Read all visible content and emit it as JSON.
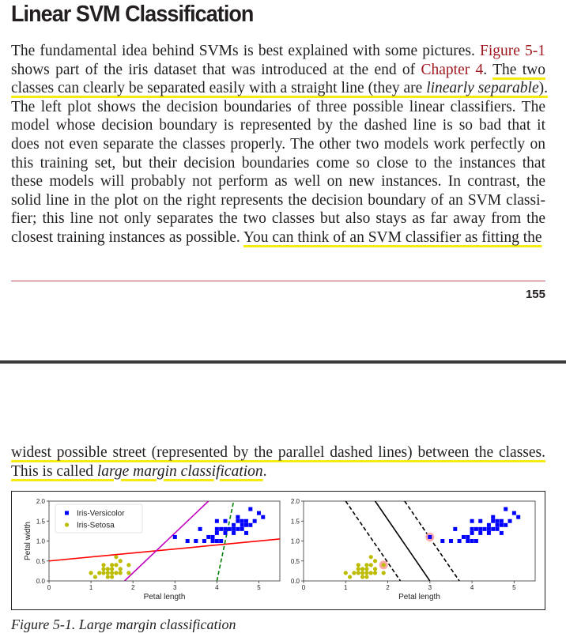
{
  "heading": "Linear SVM Classification",
  "para1": [
    [
      "The fundamental idea behind SVMs is best explained with some pictures. ",
      {
        "t": "Figure 5-1",
        "ref": true
      }
    ],
    [
      "shows part of the iris dataset that was introduced at the end of ",
      {
        "t": "Chapter 4",
        "ref": true
      },
      ". ",
      {
        "t": "The two",
        "hl": true
      }
    ],
    [
      {
        "t": "classes can clearly be separated easily with a straight line (they are ",
        "hl": true
      },
      {
        "t": "linearly separable",
        "hl": true,
        "i": true
      },
      {
        "t": ").",
        "hl": true
      }
    ],
    [
      "The left plot shows the decision boundaries of three possible linear classifiers. The"
    ],
    [
      "model whose decision boundary is represented by the dashed line is so bad that it"
    ],
    [
      "does not even separate the classes properly. The other two models work perfectly on"
    ],
    [
      "this training set, but their decision boundaries come so close to the instances that"
    ],
    [
      "these models will probably not perform as well on new instances. In contrast, the"
    ],
    [
      "solid line in the plot on the right represents the decision boundary of an SVM classi-"
    ],
    [
      "fier; this line not only separates the two classes but also stays as far away from the"
    ],
    [
      "closest training instances as possible. ",
      {
        "t": "You can think of an SVM classifier as fitting the",
        "hl": true
      }
    ]
  ],
  "page_number": "155",
  "para2": [
    [
      {
        "t": "widest possible street (represented by the parallel dashed lines) between the classes.",
        "hl": true
      }
    ],
    [
      {
        "t": "This is called ",
        "hl": true
      },
      {
        "t": "large margin classification",
        "hl": true,
        "i": true
      },
      "."
    ]
  ],
  "caption": "Figure 5-1. Large margin classification",
  "colors": {
    "versicolor": "#0000ff",
    "setosa": "#bcbc00",
    "red_line": "#ff0000",
    "magenta_line": "#bf00bf",
    "green_line": "#008000",
    "support_vector": "#ffaaaa",
    "highlight": "#f6ea10",
    "link": "#a01820"
  },
  "chart_data": [
    {
      "type": "scatter",
      "title": "",
      "xlabel": "Petal length",
      "ylabel": "Petal width",
      "xlim": [
        0,
        5.5
      ],
      "ylim": [
        0,
        2
      ],
      "xticks": [
        "0",
        "1",
        "2",
        "3",
        "4",
        "5"
      ],
      "yticks": [
        "0.0",
        "0.5",
        "1.0",
        "1.5",
        "2.0"
      ],
      "legend": {
        "position": "top-left",
        "entries": [
          {
            "label": "Iris-Versicolor",
            "marker": "square",
            "color": "#0000ff"
          },
          {
            "label": "Iris-Setosa",
            "marker": "circle",
            "color": "#bcbc00"
          }
        ]
      },
      "series": [
        {
          "name": "Iris-Versicolor",
          "marker": "square",
          "color": "#0000ff",
          "points": [
            [
              3.0,
              1.1
            ],
            [
              3.5,
              1.0
            ],
            [
              3.7,
              1.0
            ],
            [
              3.9,
              1.0
            ],
            [
              3.9,
              1.1
            ],
            [
              4.0,
              1.0
            ],
            [
              4.0,
              1.2
            ],
            [
              4.0,
              1.3
            ],
            [
              4.1,
              1.0
            ],
            [
              4.1,
              1.3
            ],
            [
              4.2,
              1.2
            ],
            [
              4.2,
              1.3
            ],
            [
              4.2,
              1.5
            ],
            [
              4.3,
              1.3
            ],
            [
              4.4,
              1.2
            ],
            [
              4.4,
              1.3
            ],
            [
              4.4,
              1.4
            ],
            [
              4.5,
              1.3
            ],
            [
              4.5,
              1.5
            ],
            [
              4.5,
              1.6
            ],
            [
              4.6,
              1.3
            ],
            [
              4.6,
              1.4
            ],
            [
              4.6,
              1.5
            ],
            [
              4.7,
              1.2
            ],
            [
              4.7,
              1.4
            ],
            [
              4.7,
              1.5
            ],
            [
              4.8,
              1.4
            ],
            [
              4.8,
              1.8
            ],
            [
              4.9,
              1.5
            ],
            [
              5.0,
              1.7
            ],
            [
              5.1,
              1.6
            ],
            [
              3.3,
              1.0
            ],
            [
              3.6,
              1.3
            ],
            [
              3.8,
              1.1
            ],
            [
              4.0,
              1.5
            ]
          ]
        },
        {
          "name": "Iris-Setosa",
          "marker": "circle",
          "color": "#bcbc00",
          "points": [
            [
              1.0,
              0.2
            ],
            [
              1.1,
              0.1
            ],
            [
              1.2,
              0.2
            ],
            [
              1.3,
              0.2
            ],
            [
              1.3,
              0.3
            ],
            [
              1.3,
              0.4
            ],
            [
              1.4,
              0.1
            ],
            [
              1.4,
              0.2
            ],
            [
              1.4,
              0.3
            ],
            [
              1.5,
              0.1
            ],
            [
              1.5,
              0.2
            ],
            [
              1.5,
              0.3
            ],
            [
              1.5,
              0.4
            ],
            [
              1.6,
              0.2
            ],
            [
              1.6,
              0.4
            ],
            [
              1.6,
              0.6
            ],
            [
              1.7,
              0.2
            ],
            [
              1.7,
              0.3
            ],
            [
              1.7,
              0.5
            ],
            [
              1.9,
              0.2
            ],
            [
              1.9,
              0.4
            ]
          ]
        }
      ],
      "lines": [
        {
          "style": "solid",
          "color": "#ff0000",
          "from": [
            0,
            0.5
          ],
          "to": [
            5.5,
            1.05
          ]
        },
        {
          "style": "solid",
          "color": "#bf00bf",
          "from": [
            1.8,
            0
          ],
          "to": [
            3.8,
            2.0
          ]
        },
        {
          "style": "dashed",
          "color": "#008000",
          "from": [
            4.0,
            0
          ],
          "to": [
            4.4,
            2.0
          ]
        }
      ]
    },
    {
      "type": "scatter",
      "title": "",
      "xlabel": "Petal length",
      "ylabel": "",
      "xlim": [
        0,
        5.5
      ],
      "ylim": [
        0,
        2
      ],
      "xticks": [
        "0",
        "1",
        "2",
        "3",
        "4",
        "5"
      ],
      "yticks": [
        "0.0",
        "0.5",
        "1.0",
        "1.5",
        "2.0"
      ],
      "series": [
        {
          "name": "Iris-Versicolor",
          "marker": "square",
          "color": "#0000ff",
          "points": [
            [
              3.0,
              1.1
            ],
            [
              3.5,
              1.0
            ],
            [
              3.7,
              1.0
            ],
            [
              3.9,
              1.0
            ],
            [
              3.9,
              1.1
            ],
            [
              4.0,
              1.0
            ],
            [
              4.0,
              1.2
            ],
            [
              4.0,
              1.3
            ],
            [
              4.1,
              1.0
            ],
            [
              4.1,
              1.3
            ],
            [
              4.2,
              1.2
            ],
            [
              4.2,
              1.3
            ],
            [
              4.2,
              1.5
            ],
            [
              4.3,
              1.3
            ],
            [
              4.4,
              1.2
            ],
            [
              4.4,
              1.3
            ],
            [
              4.4,
              1.4
            ],
            [
              4.5,
              1.3
            ],
            [
              4.5,
              1.5
            ],
            [
              4.5,
              1.6
            ],
            [
              4.6,
              1.3
            ],
            [
              4.6,
              1.4
            ],
            [
              4.6,
              1.5
            ],
            [
              4.7,
              1.2
            ],
            [
              4.7,
              1.4
            ],
            [
              4.7,
              1.5
            ],
            [
              4.8,
              1.4
            ],
            [
              4.8,
              1.8
            ],
            [
              4.9,
              1.5
            ],
            [
              5.0,
              1.7
            ],
            [
              5.1,
              1.6
            ],
            [
              3.3,
              1.0
            ],
            [
              3.6,
              1.3
            ],
            [
              3.8,
              1.1
            ],
            [
              4.0,
              1.5
            ]
          ]
        },
        {
          "name": "Iris-Setosa",
          "marker": "circle",
          "color": "#bcbc00",
          "points": [
            [
              1.0,
              0.2
            ],
            [
              1.1,
              0.1
            ],
            [
              1.2,
              0.2
            ],
            [
              1.3,
              0.2
            ],
            [
              1.3,
              0.3
            ],
            [
              1.3,
              0.4
            ],
            [
              1.4,
              0.1
            ],
            [
              1.4,
              0.2
            ],
            [
              1.4,
              0.3
            ],
            [
              1.5,
              0.1
            ],
            [
              1.5,
              0.2
            ],
            [
              1.5,
              0.3
            ],
            [
              1.5,
              0.4
            ],
            [
              1.6,
              0.2
            ],
            [
              1.6,
              0.4
            ],
            [
              1.6,
              0.6
            ],
            [
              1.7,
              0.2
            ],
            [
              1.7,
              0.3
            ],
            [
              1.7,
              0.5
            ],
            [
              1.9,
              0.2
            ],
            [
              1.9,
              0.4
            ]
          ]
        }
      ],
      "support_vectors": [
        [
          1.9,
          0.4
        ],
        [
          3.0,
          1.1
        ]
      ],
      "lines": [
        {
          "style": "solid",
          "color": "#000000",
          "from": [
            1.7,
            2.0
          ],
          "to": [
            3.0,
            0
          ]
        },
        {
          "style": "dashed",
          "color": "#000000",
          "from": [
            1.0,
            2.0
          ],
          "to": [
            2.3,
            0
          ]
        },
        {
          "style": "dashed",
          "color": "#000000",
          "from": [
            2.4,
            2.0
          ],
          "to": [
            3.7,
            0
          ]
        }
      ]
    }
  ]
}
